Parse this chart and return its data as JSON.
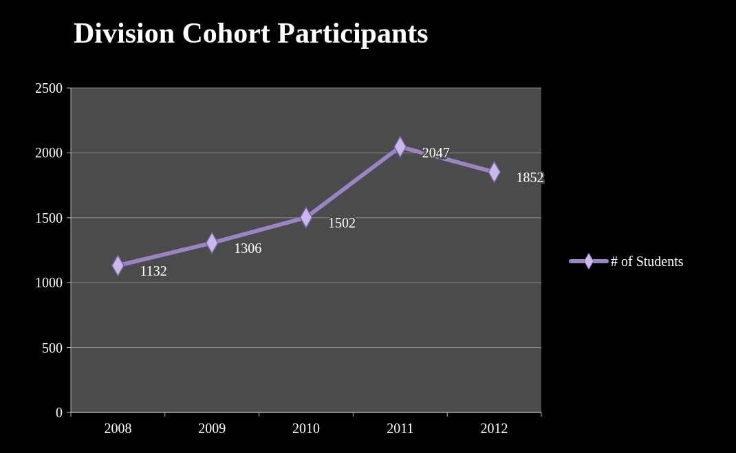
{
  "chart_data": {
    "type": "line",
    "title": "Division Cohort Participants",
    "categories": [
      "2008",
      "2009",
      "2010",
      "2011",
      "2012"
    ],
    "series": [
      {
        "name": "# of Students",
        "color": "#9b84c6",
        "values": [
          1132,
          1306,
          1502,
          2047,
          1852
        ]
      }
    ],
    "ylim": [
      0,
      2500
    ],
    "yticks": [
      0,
      500,
      1000,
      1500,
      2000,
      2500
    ],
    "grid": "y",
    "legend": "right",
    "marker": "diamond",
    "line_style": "solid",
    "data_labels": true
  }
}
